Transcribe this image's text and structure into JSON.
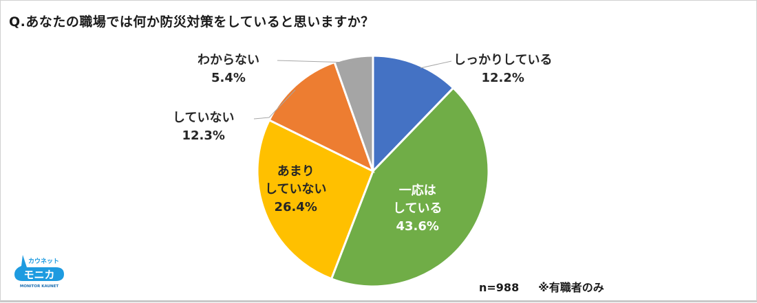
{
  "title": "Q.あなたの職場では何か防災対策をしていると思いますか？",
  "chart_data": {
    "type": "pie",
    "title": "Q.あなたの職場では何か防災対策をしていると思いますか？",
    "categories": [
      "しっかりしている",
      "一応はしている",
      "あまりしていない",
      "していない",
      "わからない"
    ],
    "values": [
      12.2,
      43.6,
      26.4,
      12.3,
      5.4
    ],
    "colors": [
      "#4472c4",
      "#70ad47",
      "#ffc000",
      "#ed7d31",
      "#a5a5a5"
    ],
    "start_angle": "12 o'clock, clockwise",
    "unit": "%",
    "legend": "none (data labels)"
  },
  "labels": {
    "shikkari": {
      "line1": "しっかりしている",
      "pct": "12.2%"
    },
    "ichiou": {
      "line1": "一応は",
      "line2": "している",
      "pct": "43.6%"
    },
    "amari": {
      "line1": "あまり",
      "line2": "していない",
      "pct": "26.4%"
    },
    "shiteinai": {
      "line1": "していない",
      "pct": "12.3%"
    },
    "wakaranai": {
      "line1": "わからない",
      "pct": "5.4%"
    }
  },
  "footer": {
    "n": "n=988",
    "note": "※有職者のみ"
  },
  "logo": {
    "top": "カウネット",
    "main": "モニカ",
    "sub": "MONITOR KAUNET",
    "color": "#1e9be0"
  }
}
